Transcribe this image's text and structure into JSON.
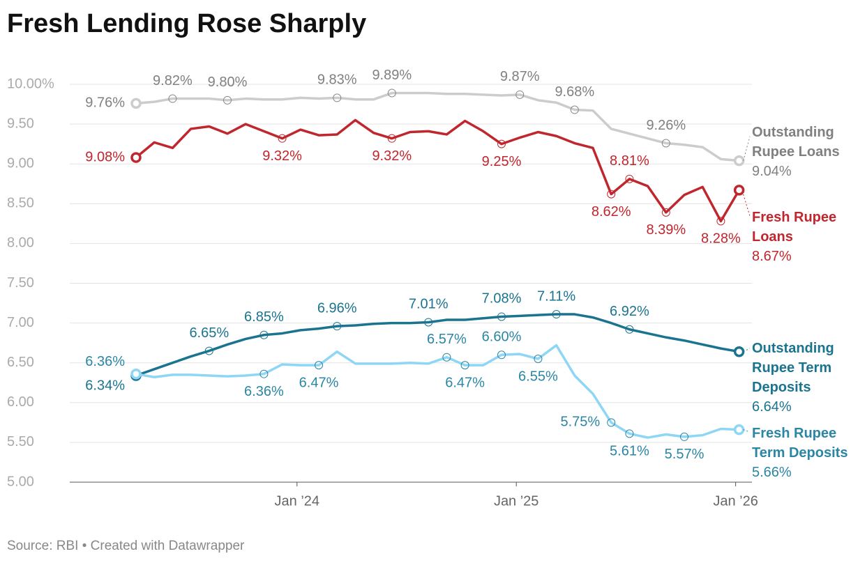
{
  "chart_data": {
    "type": "line",
    "title": "Fresh Lending Rose Sharply",
    "source": "Source: RBI • Created with Datawrapper",
    "x": [
      "2023-04",
      "2023-05",
      "2023-06",
      "2023-07",
      "2023-08",
      "2023-09",
      "2023-10",
      "2023-11",
      "2023-12",
      "2024-01",
      "2024-02",
      "2024-03",
      "2024-04",
      "2024-05",
      "2024-06",
      "2024-07",
      "2024-08",
      "2024-09",
      "2024-10",
      "2024-11",
      "2024-12",
      "2025-01",
      "2025-02",
      "2025-03",
      "2025-04",
      "2025-05",
      "2025-06",
      "2025-07",
      "2025-08",
      "2025-09",
      "2025-10",
      "2025-11",
      "2025-12",
      "2026-01"
    ],
    "xticks": [
      {
        "value": "2024-01",
        "label": "Jan ’24"
      },
      {
        "value": "2025-01",
        "label": "Jan ’25"
      },
      {
        "value": "2026-01",
        "label": "Jan ’26"
      }
    ],
    "ylim": [
      5,
      10
    ],
    "yticks": [
      {
        "value": 5,
        "label": "5.00"
      },
      {
        "value": 5.5,
        "label": "5.50"
      },
      {
        "value": 6,
        "label": "6.00"
      },
      {
        "value": 6.5,
        "label": "6.50"
      },
      {
        "value": 7,
        "label": "7.00"
      },
      {
        "value": 7.5,
        "label": "7.50"
      },
      {
        "value": 8,
        "label": "8.00"
      },
      {
        "value": 8.5,
        "label": "8.50"
      },
      {
        "value": 9,
        "label": "9.00"
      },
      {
        "value": 9.5,
        "label": "9.50"
      },
      {
        "value": 10,
        "label": "10.00%"
      }
    ],
    "grid": true,
    "series": [
      {
        "name": "Outstanding Rupee Loans",
        "color": "#cccccc",
        "label_color": "#808080",
        "values": [
          9.76,
          9.78,
          9.82,
          9.82,
          9.82,
          9.8,
          9.82,
          9.81,
          9.81,
          9.83,
          9.82,
          9.83,
          9.81,
          9.81,
          9.89,
          9.89,
          9.89,
          9.88,
          9.88,
          9.87,
          9.86,
          9.87,
          9.8,
          9.77,
          9.68,
          9.67,
          9.44,
          9.38,
          9.32,
          9.26,
          9.24,
          9.21,
          9.06,
          9.04
        ],
        "value_labels": [
          "9.76%",
          null,
          "9.82%",
          null,
          null,
          "9.80%",
          null,
          null,
          null,
          null,
          null,
          "9.83%",
          null,
          null,
          "9.89%",
          null,
          null,
          null,
          null,
          null,
          null,
          "9.87%",
          null,
          null,
          "9.68%",
          null,
          null,
          null,
          null,
          "9.26%",
          null,
          null,
          null,
          "9.04%"
        ]
      },
      {
        "name": "Fresh Rupee Loans",
        "color": "#c0262d",
        "label_color": "#c0262d",
        "values": [
          9.08,
          9.27,
          9.2,
          9.44,
          9.47,
          9.38,
          9.5,
          9.41,
          9.32,
          9.43,
          9.36,
          9.37,
          9.55,
          9.39,
          9.32,
          9.4,
          9.41,
          9.37,
          9.54,
          9.41,
          9.25,
          9.33,
          9.4,
          9.35,
          9.26,
          9.2,
          8.62,
          8.81,
          8.72,
          8.39,
          8.61,
          8.71,
          8.28,
          8.67
        ],
        "value_labels": [
          "9.08%",
          null,
          null,
          null,
          null,
          null,
          null,
          null,
          "9.32%",
          null,
          null,
          null,
          null,
          null,
          "9.32%",
          null,
          null,
          null,
          null,
          null,
          "9.25%",
          null,
          null,
          null,
          null,
          null,
          "8.62%",
          "8.81%",
          null,
          "8.39%",
          null,
          null,
          "8.28%",
          "8.67%"
        ]
      },
      {
        "name": "Outstanding Rupee Term Deposits",
        "color": "#1a7490",
        "label_color": "#1a7490",
        "values": [
          6.34,
          6.42,
          6.5,
          6.58,
          6.65,
          6.73,
          6.8,
          6.85,
          6.87,
          6.91,
          6.93,
          6.96,
          6.97,
          6.99,
          7.0,
          7.0,
          7.01,
          7.04,
          7.04,
          7.06,
          7.08,
          7.09,
          7.1,
          7.11,
          7.11,
          7.07,
          7.0,
          6.92,
          6.87,
          6.82,
          6.78,
          6.73,
          6.68,
          6.64
        ],
        "value_labels": [
          "6.34%",
          null,
          null,
          null,
          "6.65%",
          null,
          null,
          "6.85%",
          null,
          null,
          null,
          "6.96%",
          null,
          null,
          null,
          null,
          "7.01%",
          null,
          null,
          null,
          "7.08%",
          null,
          null,
          "7.11%",
          null,
          null,
          null,
          "6.92%",
          null,
          null,
          null,
          null,
          null,
          "6.64%"
        ]
      },
      {
        "name": "Fresh Rupee Term Deposits",
        "color": "#8dd6f5",
        "label_color": "#2a86a5",
        "values": [
          6.36,
          6.32,
          6.35,
          6.35,
          6.34,
          6.33,
          6.34,
          6.36,
          6.48,
          6.47,
          6.47,
          6.64,
          6.49,
          6.49,
          6.49,
          6.5,
          6.49,
          6.57,
          6.47,
          6.47,
          6.6,
          6.61,
          6.55,
          6.72,
          6.34,
          6.11,
          5.75,
          5.61,
          5.56,
          5.6,
          5.57,
          5.59,
          5.67,
          5.66
        ],
        "value_labels": [
          "6.36%",
          null,
          null,
          null,
          null,
          null,
          null,
          "6.36%",
          null,
          null,
          "6.47%",
          null,
          null,
          null,
          null,
          null,
          null,
          "6.57%",
          "6.47%",
          null,
          "6.60%",
          null,
          "6.55%",
          null,
          null,
          null,
          "5.75%",
          "5.61%",
          null,
          null,
          "5.57%",
          null,
          null,
          "5.66%"
        ]
      }
    ]
  }
}
